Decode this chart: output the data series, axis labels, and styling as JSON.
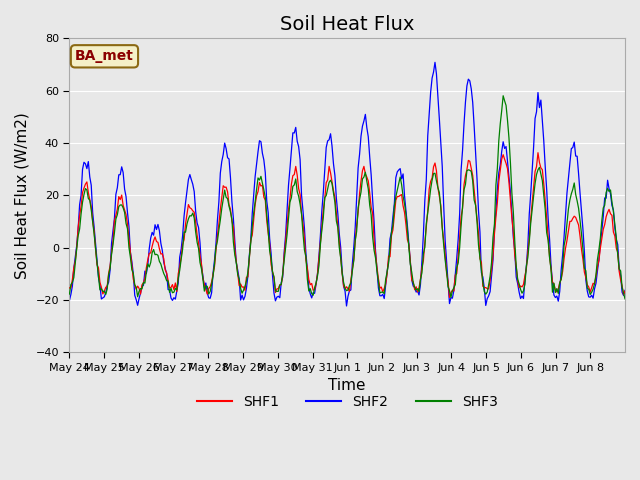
{
  "title": "Soil Heat Flux",
  "xlabel": "Time",
  "ylabel": "Soil Heat Flux (W/m2)",
  "ylim": [
    -40,
    80
  ],
  "yticks": [
    -40,
    -20,
    0,
    20,
    40,
    60,
    80
  ],
  "annotation_text": "BA_met",
  "annotation_color": "#8B0000",
  "annotation_bg": "#f5f0c8",
  "line_colors": {
    "SHF1": "red",
    "SHF2": "blue",
    "SHF3": "green"
  },
  "legend_labels": [
    "SHF1",
    "SHF2",
    "SHF3"
  ],
  "bg_color": "#e8e8e8",
  "plot_bg": "#e8e8e8",
  "n_days": 16,
  "start_day": 143,
  "x_tick_labels": [
    "May 24",
    "May 25",
    "May 26",
    "May 27",
    "May 28",
    "May 29",
    "May 30",
    "May 31",
    "Jun 1",
    "Jun 2",
    "Jun 3",
    "Jun 4",
    "Jun 5",
    "Jun 6",
    "Jun 7",
    "Jun 8"
  ],
  "title_fontsize": 14,
  "axis_label_fontsize": 11
}
